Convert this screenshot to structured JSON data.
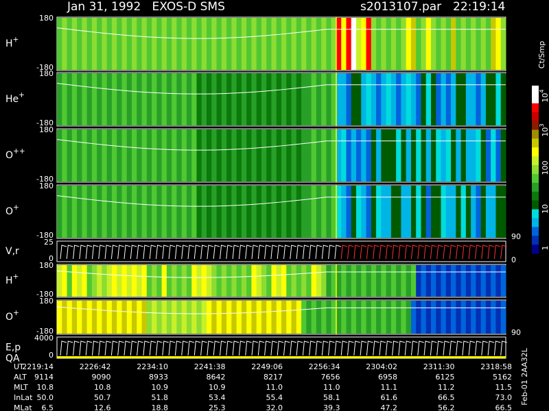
{
  "header": {
    "title": "Jan 31, 1992   EXOS-D SMS",
    "file": "s2013107.par",
    "time": "22:19:14"
  },
  "panels": [
    {
      "label": "H",
      "sup": "+",
      "top": "180",
      "bottom": "-180"
    },
    {
      "label": "He",
      "sup": "+",
      "top": "180",
      "bottom": "-180"
    },
    {
      "label": "O",
      "sup": "++",
      "top": "180",
      "bottom": "-180"
    },
    {
      "label": "O",
      "sup": "+",
      "top": "180",
      "bottom": "-180",
      "right": "90"
    },
    {
      "label": "V,r",
      "top": "25",
      "bottom": "0",
      "right": "0"
    },
    {
      "label": "H",
      "sup": "+",
      "top": "180",
      "bottom": "-180"
    },
    {
      "label": "O",
      "sup": "+",
      "top": "180",
      "bottom": "-180",
      "right": "90"
    },
    {
      "label": "E,p",
      "label2": "QA",
      "top": "4000",
      "bottom": "0"
    }
  ],
  "colorbar": {
    "unit": "Ct/Smp",
    "labels": [
      {
        "base": "10",
        "sup": "4"
      },
      {
        "base": "10",
        "sup": "3"
      },
      {
        "base": "100"
      },
      {
        "base": "10"
      },
      {
        "base": "1"
      }
    ]
  },
  "table": {
    "rows": [
      {
        "label": "UT",
        "values": [
          "2219:14",
          "2226:42",
          "2234:10",
          "2241:38",
          "2249:06",
          "2256:34",
          "2304:02",
          "2311:30",
          "2318:58"
        ]
      },
      {
        "label": "ALT",
        "values": [
          "9114",
          "9090",
          "8933",
          "8642",
          "8217",
          "7656",
          "6958",
          "6125",
          "5162"
        ]
      },
      {
        "label": "MLT",
        "values": [
          "10.8",
          "10.8",
          "10.9",
          "10.9",
          "11.0",
          "11.0",
          "11.1",
          "11.2",
          "11.5"
        ]
      },
      {
        "label": "InLat",
        "values": [
          "50.0",
          "50.7",
          "51.8",
          "53.4",
          "55.4",
          "58.1",
          "61.6",
          "66.5",
          "73.0"
        ]
      },
      {
        "label": "MLat",
        "values": [
          "6.5",
          "12.6",
          "18.8",
          "25.3",
          "32.0",
          "39.3",
          "47.2",
          "56.2",
          "66.5"
        ]
      }
    ]
  },
  "side": "Feb-01 2AA32L"
}
